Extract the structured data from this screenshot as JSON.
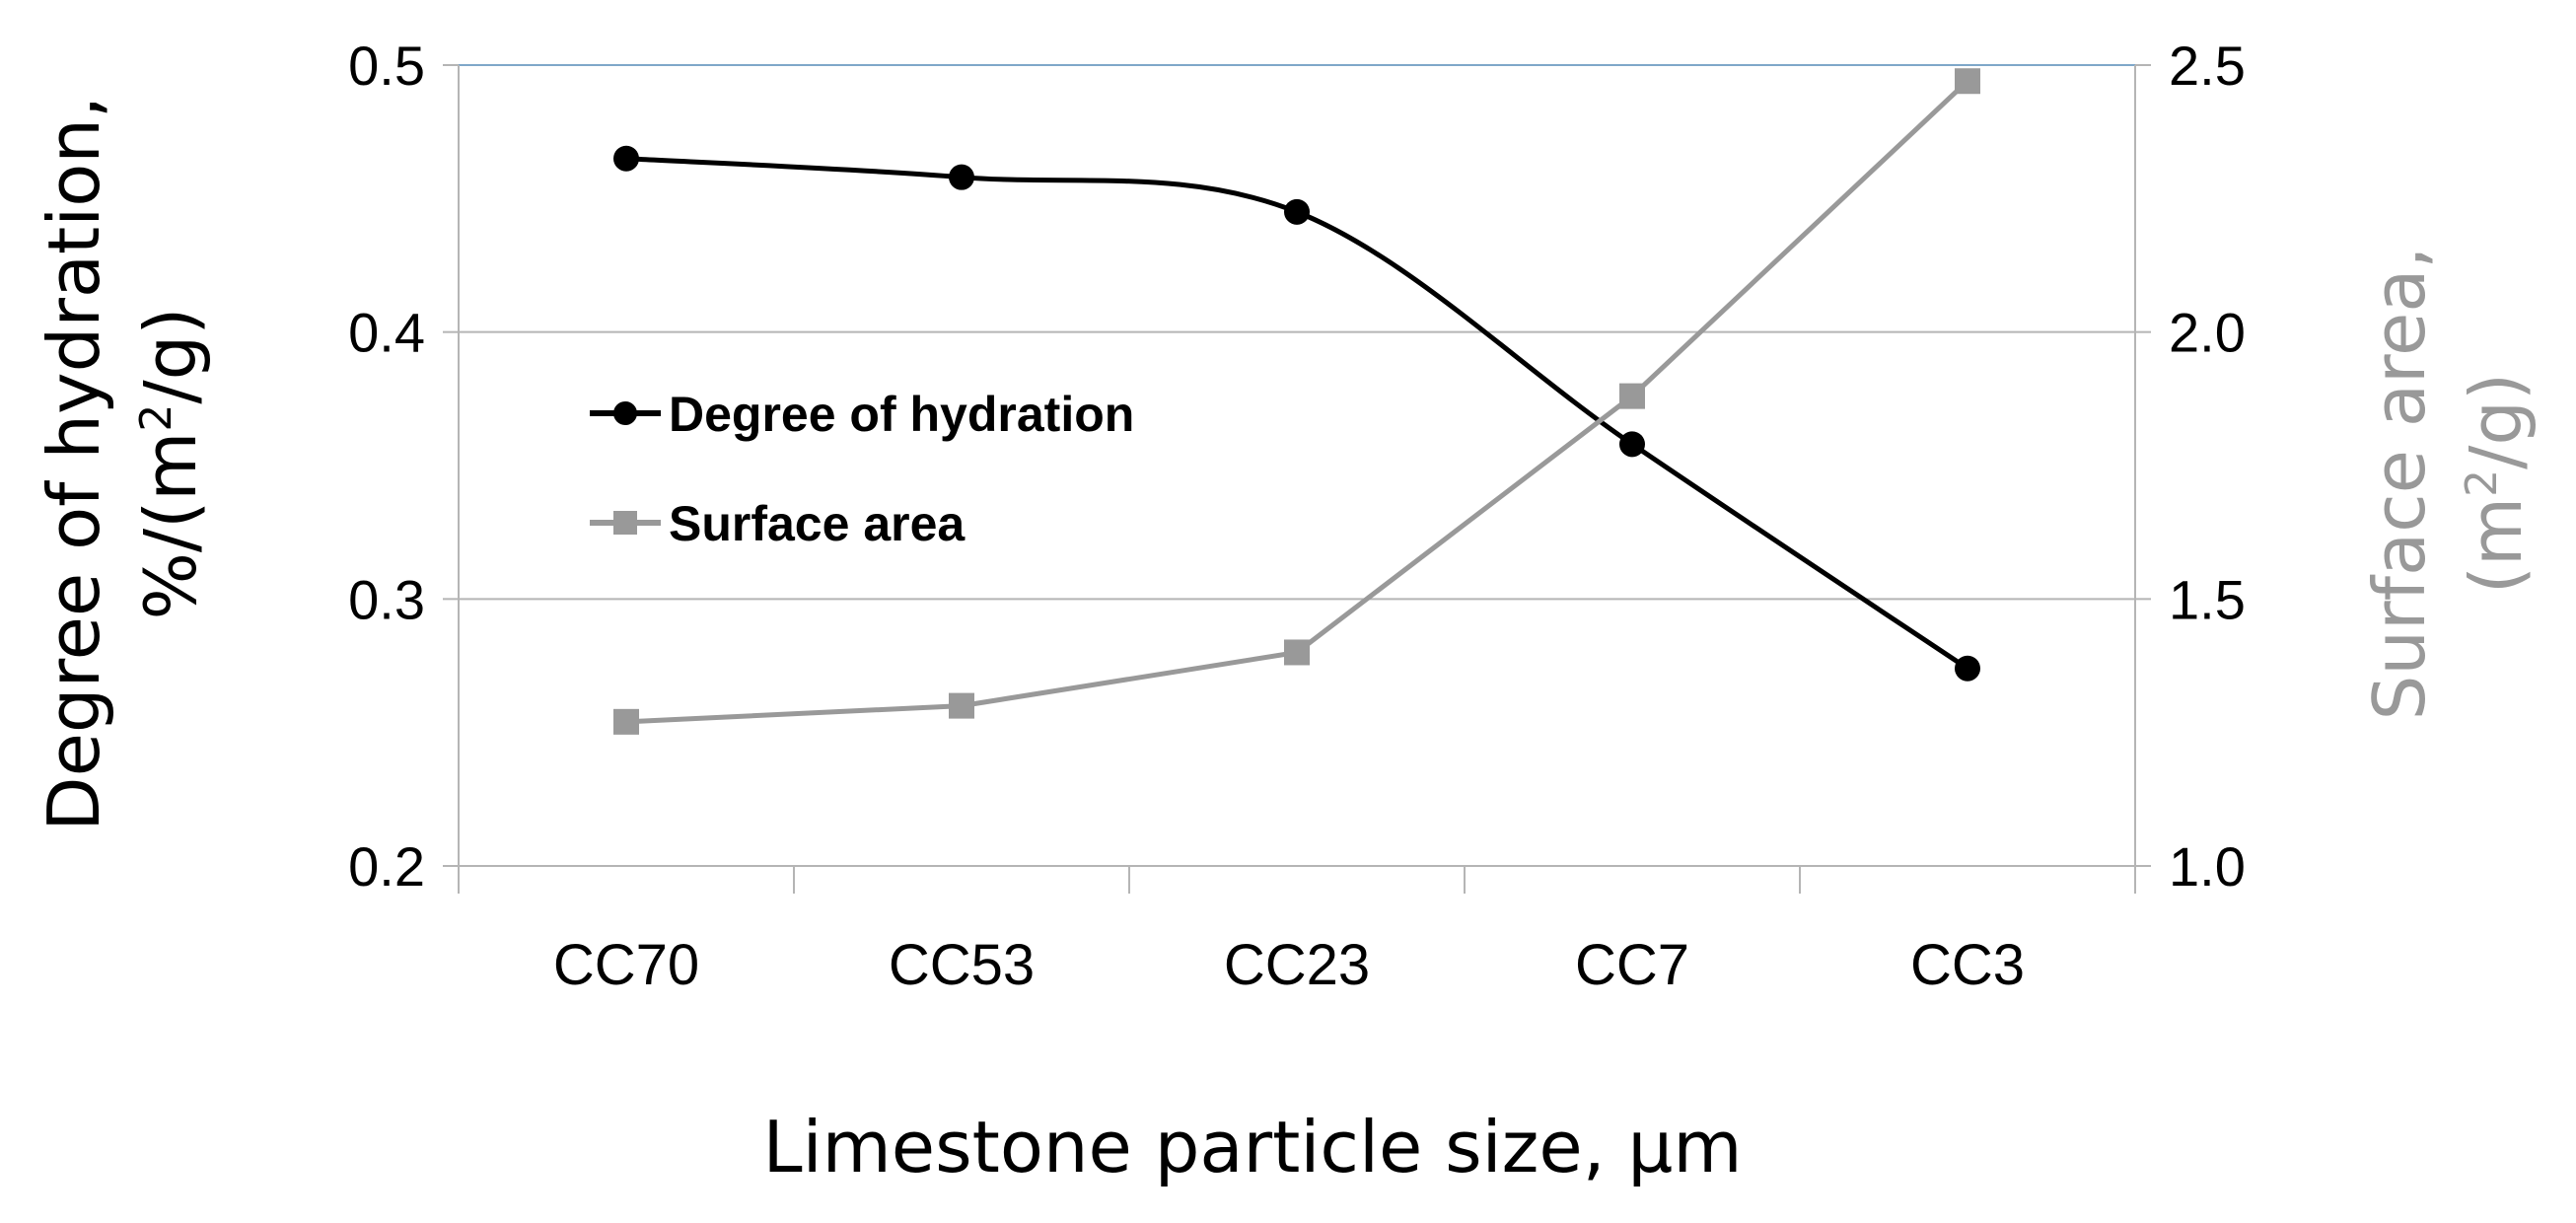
{
  "chart_data": {
    "type": "line",
    "categories": [
      "CC70",
      "CC53",
      "CC23",
      "CC7",
      "CC3"
    ],
    "xlabel": "Limestone particle size, μm",
    "y_left": {
      "label_line1": "Degree of hydration,",
      "label_line2_prefix": "%/(m",
      "label_sup": "2",
      "label_line2_suffix": "/g)",
      "ylim": [
        0.2,
        0.5
      ],
      "ticks": [
        0.2,
        0.3,
        0.4,
        0.5
      ],
      "tick_labels": [
        "0.2",
        "0.3",
        "0.4",
        "0.5"
      ]
    },
    "y_right": {
      "label_line1": "Surface area,",
      "label_line2_prefix": "(m",
      "label_sup": "2",
      "label_line2_suffix": "/g)",
      "ylim": [
        1.0,
        2.5
      ],
      "ticks": [
        1.0,
        1.5,
        2.0,
        2.5
      ],
      "tick_labels": [
        "1.0",
        "1.5",
        "2.0",
        "2.5"
      ]
    },
    "grid": true,
    "legend_position": "center-left",
    "series": [
      {
        "name": "Degree of hydration",
        "axis": "left",
        "marker": "circle",
        "smooth": true,
        "color": "#000000",
        "values": [
          0.465,
          0.458,
          0.445,
          0.358,
          0.274
        ]
      },
      {
        "name": "Surface area",
        "axis": "right",
        "marker": "square",
        "smooth": false,
        "color": "#999999",
        "values": [
          1.27,
          1.3,
          1.4,
          1.88,
          2.47
        ]
      }
    ]
  },
  "colors": {
    "grid": "#b5b5b5",
    "top_grid": "#7fa7c9",
    "axis": "#b5b5b5",
    "right_label": "#999999"
  }
}
